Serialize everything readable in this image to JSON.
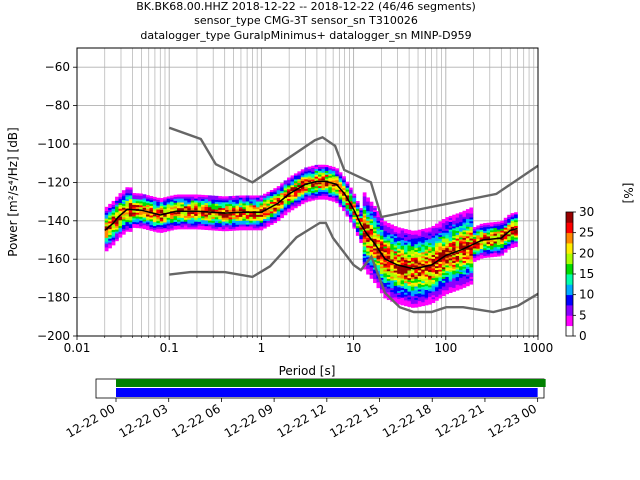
{
  "chart_data": {
    "type": "heatmap",
    "title_lines": [
      "BK.BK68.00.HHZ   2018-12-22 -- 2018-12-22  (46/46 segments)",
      "sensor_type CMG-3T sensor_sn T310026",
      "datalogger_type GuralpMinimus+ datalogger_sn MINP-D959"
    ],
    "xlabel": "Period [s]",
    "ylabel": "Power [m²/s⁴/Hz] [dB]",
    "x_scale": "log",
    "xlim": [
      0.01,
      1000
    ],
    "ylim": [
      -200,
      -50
    ],
    "x_ticks": [
      {
        "v": 0.01,
        "label": "0.01"
      },
      {
        "v": 0.1,
        "label": "0.1"
      },
      {
        "v": 1,
        "label": "1"
      },
      {
        "v": 10,
        "label": "10"
      },
      {
        "v": 100,
        "label": "100"
      },
      {
        "v": 1000,
        "label": "1000"
      }
    ],
    "y_ticks": [
      {
        "v": -60,
        "label": "−60"
      },
      {
        "v": -80,
        "label": "−80"
      },
      {
        "v": -100,
        "label": "−100"
      },
      {
        "v": -120,
        "label": "−120"
      },
      {
        "v": -140,
        "label": "−140"
      },
      {
        "v": -160,
        "label": "−160"
      },
      {
        "v": -180,
        "label": "−180"
      },
      {
        "v": -200,
        "label": "−200"
      }
    ],
    "grid": true,
    "noise_model_high": [
      [
        0.1,
        -91.5
      ],
      [
        0.22,
        -97.4
      ],
      [
        0.32,
        -110.5
      ],
      [
        0.8,
        -120
      ],
      [
        3.8,
        -98
      ],
      [
        4.6,
        -96.5
      ],
      [
        6.3,
        -101
      ],
      [
        7.9,
        -113.5
      ],
      [
        15.4,
        -120
      ],
      [
        20,
        -138
      ],
      [
        354,
        -126
      ],
      [
        1000,
        -111.3
      ]
    ],
    "noise_model_low": [
      [
        0.1,
        -168
      ],
      [
        0.17,
        -166.7
      ],
      [
        0.4,
        -166.7
      ],
      [
        0.8,
        -169.2
      ],
      [
        1.24,
        -163.7
      ],
      [
        2.4,
        -148.6
      ],
      [
        4.3,
        -141.1
      ],
      [
        5.0,
        -141.1
      ],
      [
        6.0,
        -149
      ],
      [
        10,
        -163
      ],
      [
        12,
        -165.7
      ],
      [
        15.6,
        -158.7
      ],
      [
        21.9,
        -177.5
      ],
      [
        31.6,
        -185
      ],
      [
        45,
        -187.5
      ],
      [
        70,
        -187.5
      ],
      [
        101,
        -185
      ],
      [
        154,
        -185
      ],
      [
        328,
        -187.5
      ],
      [
        600,
        -184.4
      ],
      [
        1000,
        -178
      ]
    ],
    "mode_line": [
      [
        0.02,
        -145
      ],
      [
        0.025,
        -141
      ],
      [
        0.028,
        -138
      ],
      [
        0.035,
        -134
      ],
      [
        0.05,
        -134.5
      ],
      [
        0.08,
        -137
      ],
      [
        0.12,
        -135
      ],
      [
        0.2,
        -135
      ],
      [
        0.4,
        -136
      ],
      [
        0.6,
        -135.5
      ],
      [
        1,
        -135.5
      ],
      [
        1.5,
        -131
      ],
      [
        2,
        -126
      ],
      [
        3,
        -121
      ],
      [
        4,
        -119.5
      ],
      [
        5,
        -119.5
      ],
      [
        6.5,
        -121
      ],
      [
        8,
        -126
      ],
      [
        10,
        -134
      ],
      [
        12,
        -142
      ],
      [
        14,
        -147
      ],
      [
        17,
        -152
      ],
      [
        22,
        -160
      ],
      [
        30,
        -163
      ],
      [
        45,
        -165
      ],
      [
        70,
        -163
      ],
      [
        100,
        -158
      ],
      [
        150,
        -155
      ],
      [
        250,
        -150
      ],
      [
        400,
        -149
      ],
      [
        500,
        -145
      ],
      [
        600,
        -144
      ]
    ],
    "colorbar": {
      "label": "[%]",
      "range": [
        0,
        30
      ],
      "ticks": [
        {
          "v": 0,
          "label": "0"
        },
        {
          "v": 5,
          "label": "5"
        },
        {
          "v": 10,
          "label": "10"
        },
        {
          "v": 15,
          "label": "15"
        },
        {
          "v": 20,
          "label": "20"
        },
        {
          "v": 25,
          "label": "25"
        },
        {
          "v": 30,
          "label": "30"
        }
      ],
      "colors": [
        "#ffffff",
        "#ff00ff",
        "#8800ff",
        "#0000ff",
        "#00aaff",
        "#00ffaa",
        "#00dd00",
        "#aaff00",
        "#ffee00",
        "#ff8800",
        "#ff0000",
        "#990000"
      ]
    },
    "coverage": {
      "time_range_hours": [
        0,
        25.5
      ],
      "data_bar": {
        "start_hour": 0,
        "end_hour": 24,
        "color": "#0000ff"
      },
      "processed_bar": {
        "start_hour": 0,
        "end_hour": 24,
        "color": "#008000"
      },
      "ticks": [
        {
          "h": 0,
          "label": "12-22 00"
        },
        {
          "h": 3,
          "label": "12-22 03"
        },
        {
          "h": 6,
          "label": "12-22 06"
        },
        {
          "h": 9,
          "label": "12-22 09"
        },
        {
          "h": 12,
          "label": "12-22 12"
        },
        {
          "h": 15,
          "label": "12-22 15"
        },
        {
          "h": 18,
          "label": "12-22 18"
        },
        {
          "h": 21,
          "label": "12-22 21"
        },
        {
          "h": 24,
          "label": "12-23 00"
        }
      ]
    }
  }
}
